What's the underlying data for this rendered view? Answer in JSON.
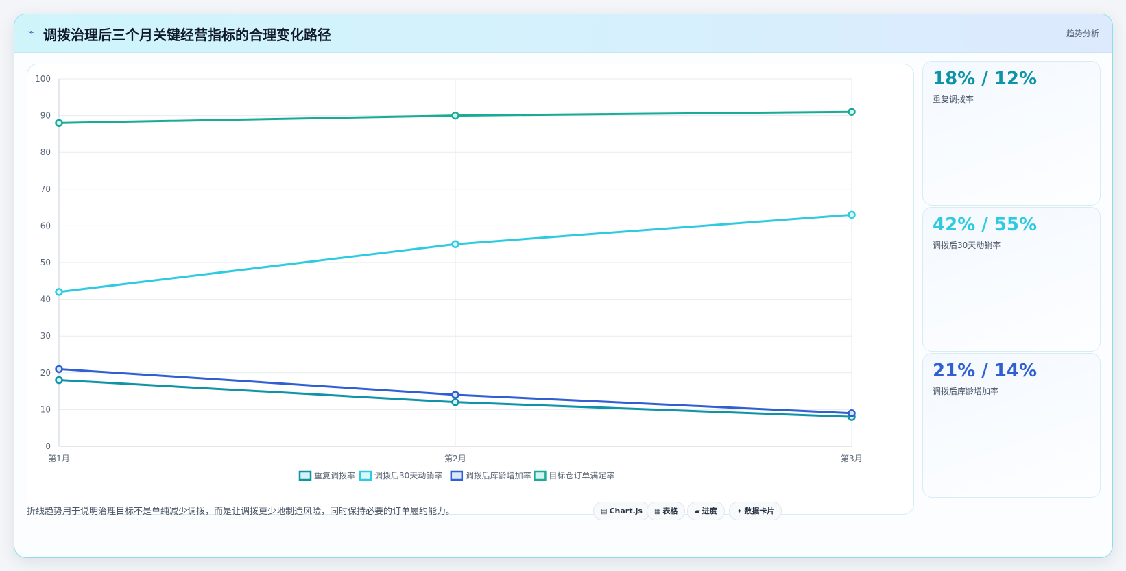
{
  "header": {
    "icon": "trend-icon",
    "title": "调拨治理后三个月关键经营指标的合理变化路径",
    "badge": "趋势分析"
  },
  "chart_data": {
    "type": "line",
    "categories": [
      "第1月",
      "第2月",
      "第3月"
    ],
    "series": [
      {
        "name": "重复调拨率",
        "values": [
          18,
          12,
          8
        ],
        "color": "#0f93a6",
        "fill": "#d5f3f6"
      },
      {
        "name": "调拨后30天动销率",
        "values": [
          42,
          55,
          63
        ],
        "color": "#2ecbe0",
        "fill": "#d9f8fc"
      },
      {
        "name": "调拨后库龄增加率",
        "values": [
          21,
          14,
          9
        ],
        "color": "#2f5fd0",
        "fill": "#dbe6fa"
      },
      {
        "name": "目标仓订单满足率",
        "values": [
          88,
          90,
          91
        ],
        "color": "#1aab96",
        "fill": "#d6f4ef"
      }
    ],
    "ylim": [
      0,
      100
    ],
    "yticks": [
      0,
      10,
      20,
      30,
      40,
      50,
      60,
      70,
      80,
      90,
      100
    ],
    "grid": true,
    "legend": "bottom"
  },
  "stats": [
    {
      "value": "18% / 12%",
      "label": "重复调拨率",
      "color": "#0f93a6"
    },
    {
      "value": "42% / 55%",
      "label": "调拨后30天动销率",
      "color": "#2ecbe0"
    },
    {
      "value": "21% / 14%",
      "label": "调拨后库龄增加率",
      "color": "#2f5fd0"
    }
  ],
  "footer": {
    "text": "折线趋势用于说明治理目标不是单纯减少调拨，而是让调拨更少地制造风险，同时保持必要的订单履约能力。",
    "tags": [
      {
        "icon": "chart-icon",
        "glyph": "▤",
        "label": "Chart.js"
      },
      {
        "icon": "table-icon",
        "glyph": "▦",
        "label": "表格"
      },
      {
        "icon": "progress-icon",
        "glyph": "▰",
        "label": "进度"
      },
      {
        "icon": "card-icon",
        "glyph": "✦",
        "label": "数据卡片"
      }
    ]
  }
}
